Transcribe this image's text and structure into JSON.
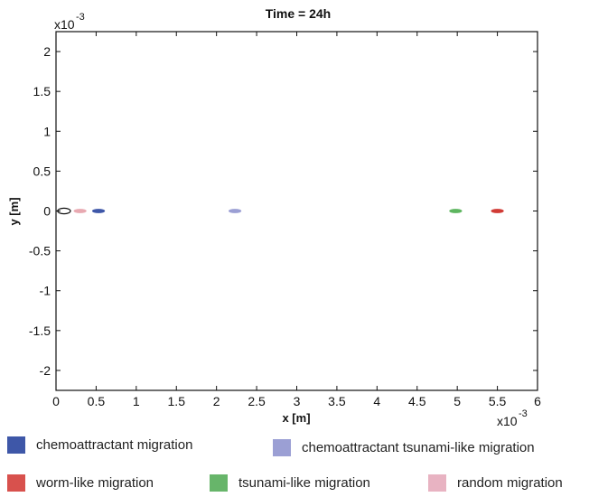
{
  "chart_data": {
    "type": "scatter",
    "title": "Time = 24h",
    "xlabel": "x [m]",
    "ylabel": "y [m]",
    "x_exponent_label": "x10",
    "x_exponent": "-3",
    "y_exponent_label": "x10",
    "y_exponent": "-3",
    "xlim": [
      0,
      6
    ],
    "ylim": [
      -2.25,
      2.25
    ],
    "x_ticks": [
      "0",
      "0.5",
      "1",
      "1.5",
      "2",
      "2.5",
      "3",
      "3.5",
      "4",
      "4.5",
      "5",
      "5.5",
      "6"
    ],
    "y_ticks": [
      "2",
      "1.5",
      "1",
      "0.5",
      "0",
      "-0.5",
      "-1",
      "-1.5",
      "-2"
    ],
    "x_tick_values": [
      0,
      0.5,
      1,
      1.5,
      2,
      2.5,
      3,
      3.5,
      4,
      4.5,
      5,
      5.5,
      6
    ],
    "y_tick_values": [
      2,
      1.5,
      1,
      0.5,
      0,
      -0.5,
      -1,
      -1.5,
      -2
    ],
    "grid": false,
    "legend_position": "bottom",
    "initial_outline": {
      "x": 0.1,
      "y": 0,
      "rx": 0.08,
      "ry": 0.025
    },
    "series": [
      {
        "name": "chemoattractant migration",
        "color": "#3e57a8",
        "x": 0.53,
        "y": 0,
        "rx": 0.08,
        "ry": 0.025
      },
      {
        "name": "chemoattractant tsunami-like migration",
        "color": "#9b9fd4",
        "x": 2.23,
        "y": 0,
        "rx": 0.08,
        "ry": 0.025
      },
      {
        "name": "worm-like migration",
        "color": "#d13b35",
        "x": 5.5,
        "y": 0,
        "rx": 0.08,
        "ry": 0.025
      },
      {
        "name": "tsunami-like migration",
        "color": "#5db55f",
        "x": 4.98,
        "y": 0,
        "rx": 0.08,
        "ry": 0.025
      },
      {
        "name": "random migration",
        "color": "#e8a9b1",
        "x": 0.3,
        "y": 0,
        "rx": 0.08,
        "ry": 0.025
      }
    ]
  },
  "legend": {
    "items": [
      {
        "label": "chemoattractant migration",
        "color": "#3e57a8"
      },
      {
        "label": "chemoattractant tsunami-like migration",
        "color": "#9b9fd4"
      },
      {
        "label": "worm-like migration",
        "color": "#d8514d"
      },
      {
        "label": "tsunami-like migration",
        "color": "#67b56a"
      },
      {
        "label": "random migration",
        "color": "#e8b3c2"
      }
    ]
  }
}
